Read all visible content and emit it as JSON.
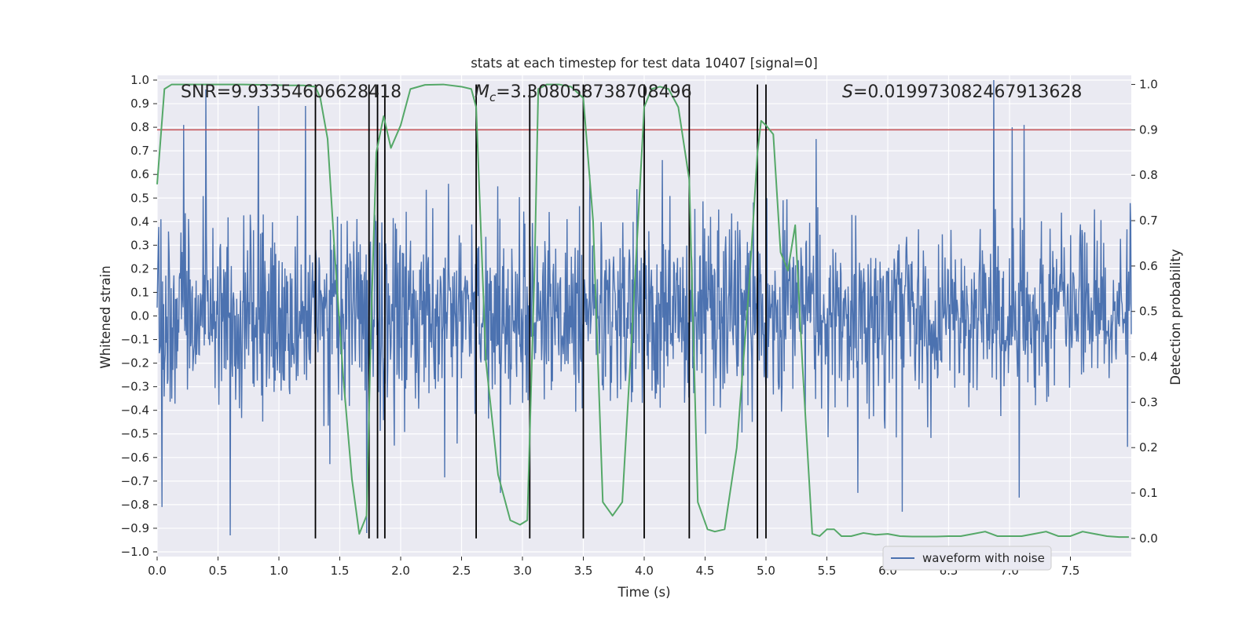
{
  "chart_data": {
    "type": "line",
    "title": "stats at each timestep for test data 10407 [signal=0]",
    "xlabel": "Time (s)",
    "ylabel_left": "Whitened strain",
    "ylabel_right": "Detection probability",
    "xlim": [
      0,
      8
    ],
    "ylim_left": [
      -1.02,
      1.02
    ],
    "ylim_right": [
      -0.04,
      1.02
    ],
    "x_ticks": [
      "0.0",
      "0.5",
      "1.0",
      "1.5",
      "2.0",
      "2.5",
      "3.0",
      "3.5",
      "4.0",
      "4.5",
      "5.0",
      "5.5",
      "6.0",
      "6.5",
      "7.0",
      "7.5"
    ],
    "x_tick_values": [
      0,
      0.5,
      1,
      1.5,
      2,
      2.5,
      3,
      3.5,
      4,
      4.5,
      5,
      5.5,
      6,
      6.5,
      7,
      7.5
    ],
    "y_ticks_left": [
      "1.0",
      "0.9",
      "0.8",
      "0.7",
      "0.6",
      "0.5",
      "0.4",
      "0.3",
      "0.2",
      "0.1",
      "0.0",
      "−0.1",
      "−0.2",
      "−0.3",
      "−0.4",
      "−0.5",
      "−0.6",
      "−0.7",
      "−0.8",
      "−0.9",
      "−1.0"
    ],
    "y_tick_values_left": [
      1.0,
      0.9,
      0.8,
      0.7,
      0.6,
      0.5,
      0.4,
      0.3,
      0.2,
      0.1,
      0.0,
      -0.1,
      -0.2,
      -0.3,
      -0.4,
      -0.5,
      -0.6,
      -0.7,
      -0.8,
      -0.9,
      -1.0
    ],
    "y_ticks_right": [
      "1.0",
      "0.9",
      "0.8",
      "0.7",
      "0.6",
      "0.5",
      "0.4",
      "0.3",
      "0.2",
      "0.1",
      "0.0"
    ],
    "y_tick_values_right": [
      1.0,
      0.9,
      0.8,
      0.7,
      0.6,
      0.5,
      0.4,
      0.3,
      0.2,
      0.1,
      0.0
    ],
    "annotations": {
      "snr": "SNR=9.93354606628418",
      "mc_symbol": "M",
      "mc_sub": "c",
      "mc_value": "=3.308058738708496",
      "s_symbol": "S",
      "s_value": "=0.019973082467913628"
    },
    "legend": {
      "label": "waveform with noise",
      "position": "lower-right"
    },
    "threshold": {
      "value": 0.9,
      "axis": "right",
      "color": "#c44e52"
    },
    "vertical_lines": [
      1.3,
      1.74,
      1.81,
      1.87,
      2.62,
      3.06,
      3.5,
      4.0,
      4.37,
      4.93,
      5.0
    ],
    "waveform": {
      "name": "waveform with noise",
      "color": "#4c72b0",
      "sampling": "dense noise, typical amplitude ±0.45",
      "peaks": [
        {
          "x": 0.03,
          "y": 0.41
        },
        {
          "x": 0.22,
          "y": 0.81
        },
        {
          "x": 0.4,
          "y": 0.96
        },
        {
          "x": 0.83,
          "y": 0.89
        },
        {
          "x": 1.22,
          "y": 0.89
        },
        {
          "x": 6.87,
          "y": 1.0
        },
        {
          "x": 7.12,
          "y": 0.81
        },
        {
          "x": 7.02,
          "y": 0.8
        },
        {
          "x": 5.41,
          "y": 0.75
        }
      ],
      "troughs": [
        {
          "x": 0.04,
          "y": -0.81
        },
        {
          "x": 0.6,
          "y": -0.93
        },
        {
          "x": 1.72,
          "y": -0.92
        },
        {
          "x": 6.12,
          "y": -0.83
        },
        {
          "x": 7.08,
          "y": -0.77
        },
        {
          "x": 2.82,
          "y": -0.75
        }
      ]
    },
    "probability": {
      "name": "detection probability",
      "color": "#55a868",
      "x": [
        0.0,
        0.06,
        0.12,
        0.2,
        0.3,
        0.5,
        0.7,
        0.9,
        1.1,
        1.2,
        1.3,
        1.34,
        1.4,
        1.46,
        1.53,
        1.6,
        1.66,
        1.72,
        1.76,
        1.8,
        1.86,
        1.92,
        2.0,
        2.08,
        2.2,
        2.35,
        2.5,
        2.58,
        2.62,
        2.7,
        2.8,
        2.9,
        2.98,
        3.04,
        3.1,
        3.13,
        3.2,
        3.3,
        3.4,
        3.5,
        3.58,
        3.66,
        3.74,
        3.82,
        3.92,
        4.0,
        4.06,
        4.13,
        4.2,
        4.28,
        4.37,
        4.44,
        4.52,
        4.58,
        4.66,
        4.76,
        4.86,
        4.93,
        4.96,
        5.0,
        5.06,
        5.12,
        5.18,
        5.24,
        5.3,
        5.38,
        5.44,
        5.5,
        5.56,
        5.62,
        5.7,
        5.8,
        5.9,
        6.0,
        6.1,
        6.2,
        6.3,
        6.4,
        6.5,
        6.6,
        6.7,
        6.8,
        6.9,
        7.0,
        7.1,
        7.2,
        7.3,
        7.4,
        7.5,
        7.6,
        7.7,
        7.8,
        7.9,
        7.98
      ],
      "y": [
        0.78,
        0.99,
        1.0,
        1.0,
        1.0,
        1.0,
        1.0,
        0.999,
        0.998,
        0.998,
        0.995,
        0.97,
        0.88,
        0.62,
        0.35,
        0.13,
        0.01,
        0.05,
        0.5,
        0.85,
        0.93,
        0.86,
        0.91,
        0.99,
        0.999,
        1.0,
        0.995,
        0.99,
        0.95,
        0.39,
        0.14,
        0.04,
        0.03,
        0.04,
        0.6,
        0.99,
        1.0,
        1.0,
        0.995,
        0.97,
        0.7,
        0.08,
        0.05,
        0.08,
        0.55,
        0.95,
        0.99,
        0.995,
        0.99,
        0.95,
        0.79,
        0.08,
        0.02,
        0.015,
        0.02,
        0.2,
        0.55,
        0.85,
        0.92,
        0.91,
        0.89,
        0.63,
        0.59,
        0.69,
        0.38,
        0.01,
        0.005,
        0.02,
        0.02,
        0.005,
        0.005,
        0.012,
        0.008,
        0.01,
        0.005,
        0.004,
        0.004,
        0.004,
        0.005,
        0.005,
        0.01,
        0.015,
        0.005,
        0.005,
        0.005,
        0.01,
        0.015,
        0.005,
        0.005,
        0.015,
        0.01,
        0.005,
        0.003,
        0.003
      ]
    }
  }
}
